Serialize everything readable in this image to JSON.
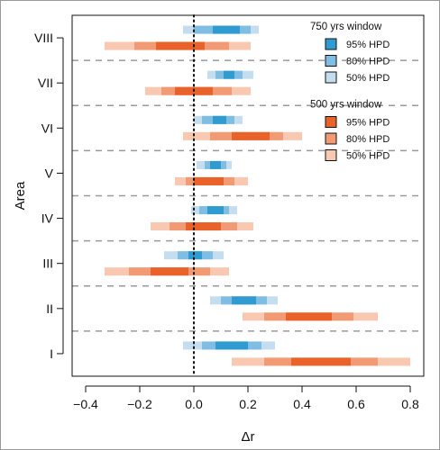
{
  "chart_data": {
    "type": "bar",
    "xlabel": "Δr",
    "ylabel": "Area",
    "xlim": [
      -0.45,
      0.85
    ],
    "xticks": [
      "−0.4",
      "−0.2",
      "0.0",
      "0.2",
      "0.4",
      "0.6",
      "0.8"
    ],
    "xtick_values": [
      -0.4,
      -0.2,
      0,
      0.2,
      0.4,
      0.6,
      0.8
    ],
    "reference_line": 0,
    "categories": [
      "VIII",
      "VII",
      "VI",
      "V",
      "IV",
      "III",
      "II",
      "I"
    ],
    "legend": {
      "placement": "top-right",
      "groups": [
        {
          "title": "750 yrs window",
          "entries": [
            {
              "label": "95% HPD",
              "color": "#2f9bd0"
            },
            {
              "label": "80% HPD",
              "color": "#7fbde2"
            },
            {
              "label": "50% HPD",
              "color": "#c4def0"
            }
          ]
        },
        {
          "title": "500 yrs window",
          "entries": [
            {
              "label": "95% HPD",
              "color": "#e8622a"
            },
            {
              "label": "80% HPD",
              "color": "#f19a73"
            },
            {
              "label": "50% HPD",
              "color": "#f8c8b0"
            }
          ]
        }
      ]
    },
    "series": [
      {
        "window": "750 yrs window",
        "colors": [
          "#c4def0",
          "#7fbde2",
          "#2f9bd0"
        ],
        "intervals": {
          "VIII": [
            [
              -0.04,
              0.24
            ],
            [
              0.0,
              0.21
            ],
            [
              0.07,
              0.17
            ]
          ],
          "VII": [
            [
              0.05,
              0.22
            ],
            [
              0.08,
              0.18
            ],
            [
              0.11,
              0.15
            ]
          ],
          "VI": [
            [
              0.0,
              0.18
            ],
            [
              0.03,
              0.15
            ],
            [
              0.07,
              0.12
            ]
          ],
          "V": [
            [
              0.01,
              0.14
            ],
            [
              0.04,
              0.12
            ],
            [
              0.06,
              0.1
            ]
          ],
          "IV": [
            [
              -0.01,
              0.16
            ],
            [
              0.02,
              0.13
            ],
            [
              0.05,
              0.11
            ]
          ],
          "III": [
            [
              -0.11,
              0.11
            ],
            [
              -0.06,
              0.07
            ],
            [
              -0.02,
              0.03
            ]
          ],
          "II": [
            [
              0.06,
              0.31
            ],
            [
              0.1,
              0.27
            ],
            [
              0.14,
              0.23
            ]
          ],
          "I": [
            [
              -0.04,
              0.3
            ],
            [
              0.03,
              0.25
            ],
            [
              0.08,
              0.2
            ]
          ]
        }
      },
      {
        "window": "500 yrs window",
        "colors": [
          "#f8c8b0",
          "#f19a73",
          "#e8622a"
        ],
        "intervals": {
          "VIII": [
            [
              -0.33,
              0.21
            ],
            [
              -0.22,
              0.13
            ],
            [
              -0.14,
              0.04
            ]
          ],
          "VII": [
            [
              -0.18,
              0.21
            ],
            [
              -0.12,
              0.14
            ],
            [
              -0.07,
              0.07
            ]
          ],
          "VI": [
            [
              -0.04,
              0.4
            ],
            [
              0.06,
              0.33
            ],
            [
              0.14,
              0.28
            ]
          ],
          "V": [
            [
              -0.07,
              0.2
            ],
            [
              -0.03,
              0.15
            ],
            [
              0.0,
              0.11
            ]
          ],
          "IV": [
            [
              -0.16,
              0.22
            ],
            [
              -0.09,
              0.16
            ],
            [
              -0.03,
              0.1
            ]
          ],
          "III": [
            [
              -0.33,
              0.13
            ],
            [
              -0.24,
              0.06
            ],
            [
              -0.16,
              -0.02
            ]
          ],
          "II": [
            [
              0.18,
              0.68
            ],
            [
              0.26,
              0.59
            ],
            [
              0.34,
              0.51
            ]
          ],
          "I": [
            [
              0.14,
              0.8
            ],
            [
              0.26,
              0.68
            ],
            [
              0.36,
              0.58
            ]
          ]
        }
      }
    ]
  }
}
